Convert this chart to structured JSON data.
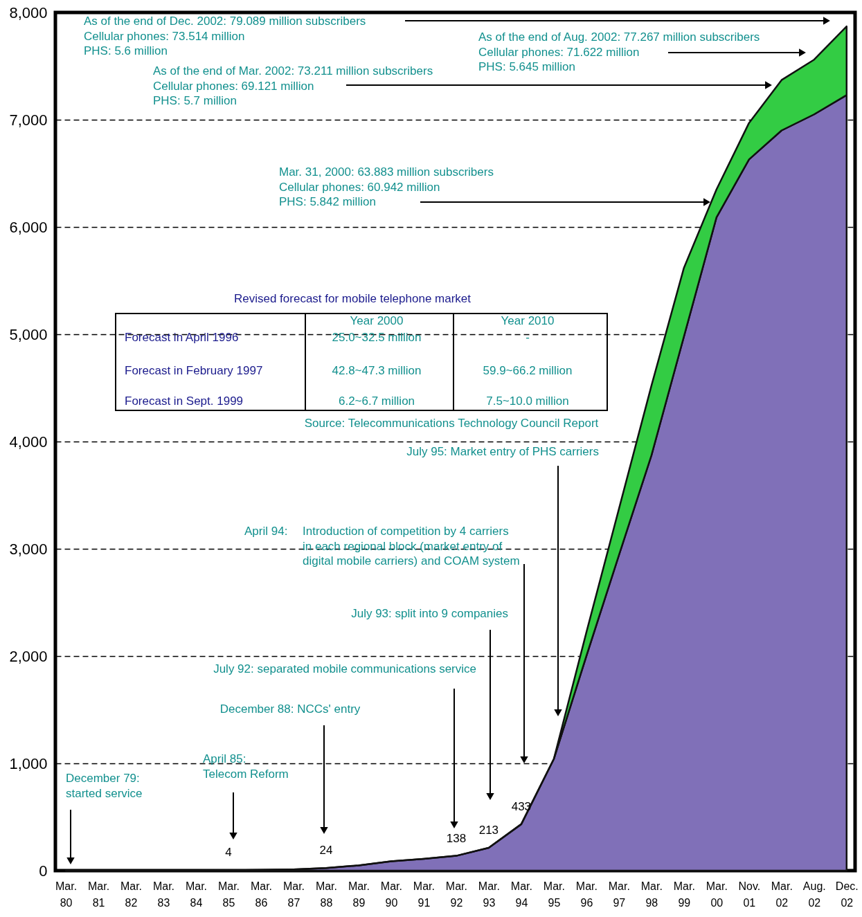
{
  "chart_data": {
    "type": "area",
    "stacked": true,
    "categories": [
      "Mar. 80",
      "Mar. 81",
      "Mar. 82",
      "Mar. 83",
      "Mar. 84",
      "Mar. 85",
      "Mar. 86",
      "Mar. 87",
      "Mar. 88",
      "Mar. 89",
      "Mar. 90",
      "Mar. 91",
      "Mar. 92",
      "Mar. 93",
      "Mar. 94",
      "Mar. 95",
      "Mar. 96",
      "Mar. 97",
      "Mar. 98",
      "Mar. 99",
      "Mar. 00",
      "Nov. 01",
      "Mar. 02",
      "Aug. 02",
      "Dec. 02"
    ],
    "series": [
      {
        "color": "#8070b8",
        "values": [
          0,
          0,
          0,
          0,
          0,
          4,
          6,
          12,
          24,
          49,
          87,
          110,
          138,
          213,
          433,
          1040,
          2000,
          2940,
          3870,
          4980,
          6090,
          6630,
          6900,
          7050,
          7230
        ],
        "value_labels": [
          null,
          null,
          null,
          null,
          null,
          "4",
          null,
          null,
          "24",
          null,
          null,
          null,
          "138",
          "213",
          "433",
          null,
          null,
          null,
          null,
          null,
          null,
          null,
          null,
          null,
          null
        ]
      },
      {
        "color": "#33cc44",
        "values": [
          0,
          0,
          0,
          0,
          0,
          0,
          0,
          0,
          0,
          0,
          0,
          0,
          0,
          0,
          0,
          0,
          220,
          430,
          650,
          640,
          260,
          340,
          470,
          510,
          640
        ]
      }
    ],
    "ylim": [
      0,
      8000
    ],
    "yticks": [
      0,
      {
        "value": 1000,
        "label": "1,000"
      },
      {
        "value": 2000,
        "label": "2,000"
      },
      {
        "value": 3000,
        "label": "3,000"
      },
      {
        "value": 4000,
        "label": "4,000"
      },
      {
        "value": 5000,
        "label": "5,000"
      },
      {
        "value": 6000,
        "label": "6,000"
      },
      {
        "value": 7000,
        "label": "7,000"
      },
      {
        "value": 8000,
        "label": "8,000"
      }
    ],
    "grid": "y",
    "annotations": [
      "As of the end of  Dec. 2002: 79.089 million subscribers\nCellular phones: 73.514 million\nPHS: 5.6 million",
      "As of the end of  Aug. 2002: 77.267 million subscribers\nCellular phones: 71.622 million\nPHS: 5.645 million",
      "As of the end of  Mar. 2002: 73.211 million subscribers\nCellular phones: 69.121 million\nPHS: 5.7 million",
      "Mar. 31, 2000: 63.883 million subscribers\nCellular phones: 60.942 million\nPHS: 5.842 million",
      "Revised forecast for mobile telephone market",
      "Year 2000",
      "Year 2010",
      "Forecast in April 1996",
      "25.0~32.5 million",
      "-",
      "Forecast in February 1997",
      "42.8~47.3 million",
      "59.9~66.2 million",
      "Forecast in Sept. 1999",
      "6.2~6.7 million",
      "7.5~10.0 million",
      "Source: Telecommunications Technology Council Report",
      "July 95: Market entry of PHS carriers",
      "April 94:",
      "Introduction of competition  by 4 carriers\nin each regional block (market entry of\ndigital mobile carriers) and COAM system",
      "July 93: split into 9 companies",
      "July 92: separated mobile communications service",
      "December 88: NCCs' entry",
      "April 85:\nTelecom Reform",
      "December 79:\nstarted service"
    ]
  }
}
